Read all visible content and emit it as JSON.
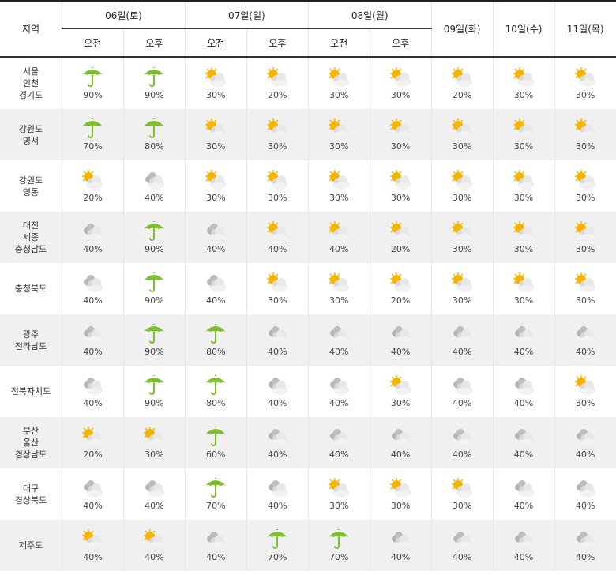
{
  "header": {
    "region_label": "지역",
    "days": [
      {
        "label": "06일(토)",
        "split": true
      },
      {
        "label": "07일(일)",
        "split": true
      },
      {
        "label": "08일(월)",
        "split": true
      },
      {
        "label": "09일(화)",
        "split": false
      },
      {
        "label": "10일(수)",
        "split": false
      },
      {
        "label": "11일(목)",
        "split": false
      }
    ],
    "am_label": "오전",
    "pm_label": "오후"
  },
  "colors": {
    "rain": "#7cc12c",
    "sun": "#f5b400",
    "cloud": "#c8c8c8"
  },
  "rows": [
    {
      "region": [
        "서울",
        "인천",
        "경기도"
      ],
      "cells": [
        [
          "rain",
          "90%"
        ],
        [
          "rain",
          "90%"
        ],
        [
          "partly-cloudy",
          "30%"
        ],
        [
          "partly-cloudy",
          "20%"
        ],
        [
          "partly-cloudy",
          "30%"
        ],
        [
          "partly-cloudy",
          "30%"
        ],
        [
          "partly-cloudy",
          "20%"
        ],
        [
          "partly-cloudy",
          "30%"
        ],
        [
          "partly-cloudy",
          "30%"
        ]
      ]
    },
    {
      "region": [
        "강원도",
        "영서"
      ],
      "cells": [
        [
          "rain",
          "70%"
        ],
        [
          "rain",
          "80%"
        ],
        [
          "partly-cloudy",
          "30%"
        ],
        [
          "partly-cloudy",
          "30%"
        ],
        [
          "partly-cloudy",
          "30%"
        ],
        [
          "partly-cloudy",
          "30%"
        ],
        [
          "partly-cloudy",
          "30%"
        ],
        [
          "partly-cloudy",
          "30%"
        ],
        [
          "partly-cloudy",
          "30%"
        ]
      ]
    },
    {
      "region": [
        "강원도",
        "영동"
      ],
      "cells": [
        [
          "partly-cloudy",
          "20%"
        ],
        [
          "cloudy",
          "40%"
        ],
        [
          "partly-cloudy",
          "30%"
        ],
        [
          "partly-cloudy",
          "30%"
        ],
        [
          "partly-cloudy",
          "30%"
        ],
        [
          "partly-cloudy",
          "30%"
        ],
        [
          "partly-cloudy",
          "30%"
        ],
        [
          "partly-cloudy",
          "30%"
        ],
        [
          "partly-cloudy",
          "30%"
        ]
      ]
    },
    {
      "region": [
        "대전",
        "세종",
        "충청남도"
      ],
      "cells": [
        [
          "cloudy",
          "40%"
        ],
        [
          "rain",
          "90%"
        ],
        [
          "cloudy",
          "40%"
        ],
        [
          "partly-cloudy",
          "40%"
        ],
        [
          "partly-cloudy",
          "40%"
        ],
        [
          "partly-cloudy",
          "20%"
        ],
        [
          "partly-cloudy",
          "30%"
        ],
        [
          "partly-cloudy",
          "30%"
        ],
        [
          "partly-cloudy",
          "30%"
        ]
      ]
    },
    {
      "region": [
        "충청북도"
      ],
      "cells": [
        [
          "cloudy",
          "40%"
        ],
        [
          "rain",
          "90%"
        ],
        [
          "cloudy",
          "40%"
        ],
        [
          "partly-cloudy",
          "30%"
        ],
        [
          "partly-cloudy",
          "30%"
        ],
        [
          "partly-cloudy",
          "20%"
        ],
        [
          "partly-cloudy",
          "30%"
        ],
        [
          "partly-cloudy",
          "30%"
        ],
        [
          "partly-cloudy",
          "30%"
        ]
      ]
    },
    {
      "region": [
        "광주",
        "전라남도"
      ],
      "cells": [
        [
          "cloudy",
          "40%"
        ],
        [
          "rain",
          "90%"
        ],
        [
          "rain",
          "80%"
        ],
        [
          "cloudy",
          "40%"
        ],
        [
          "cloudy",
          "40%"
        ],
        [
          "cloudy",
          "40%"
        ],
        [
          "cloudy",
          "40%"
        ],
        [
          "cloudy",
          "40%"
        ],
        [
          "cloudy",
          "40%"
        ]
      ]
    },
    {
      "region": [
        "전북자치도"
      ],
      "cells": [
        [
          "cloudy",
          "40%"
        ],
        [
          "rain",
          "90%"
        ],
        [
          "rain",
          "80%"
        ],
        [
          "cloudy",
          "40%"
        ],
        [
          "cloudy",
          "40%"
        ],
        [
          "partly-cloudy",
          "30%"
        ],
        [
          "cloudy",
          "40%"
        ],
        [
          "cloudy",
          "40%"
        ],
        [
          "partly-cloudy",
          "30%"
        ]
      ]
    },
    {
      "region": [
        "부산",
        "울산",
        "경상남도"
      ],
      "cells": [
        [
          "partly-cloudy",
          "20%"
        ],
        [
          "partly-cloudy",
          "30%"
        ],
        [
          "rain",
          "60%"
        ],
        [
          "cloudy",
          "40%"
        ],
        [
          "cloudy",
          "40%"
        ],
        [
          "cloudy",
          "40%"
        ],
        [
          "cloudy",
          "40%"
        ],
        [
          "cloudy",
          "40%"
        ],
        [
          "cloudy",
          "40%"
        ]
      ]
    },
    {
      "region": [
        "대구",
        "경상북도"
      ],
      "cells": [
        [
          "cloudy",
          "40%"
        ],
        [
          "cloudy",
          "40%"
        ],
        [
          "rain",
          "70%"
        ],
        [
          "cloudy",
          "40%"
        ],
        [
          "partly-cloudy",
          "30%"
        ],
        [
          "partly-cloudy",
          "30%"
        ],
        [
          "partly-cloudy",
          "30%"
        ],
        [
          "cloudy",
          "40%"
        ],
        [
          "cloudy",
          "40%"
        ]
      ]
    },
    {
      "region": [
        "제주도"
      ],
      "cells": [
        [
          "partly-cloudy",
          "40%"
        ],
        [
          "partly-cloudy",
          "40%"
        ],
        [
          "cloudy",
          "40%"
        ],
        [
          "rain",
          "70%"
        ],
        [
          "rain",
          "70%"
        ],
        [
          "cloudy",
          "40%"
        ],
        [
          "cloudy",
          "40%"
        ],
        [
          "cloudy",
          "40%"
        ],
        [
          "cloudy",
          "40%"
        ]
      ]
    }
  ]
}
